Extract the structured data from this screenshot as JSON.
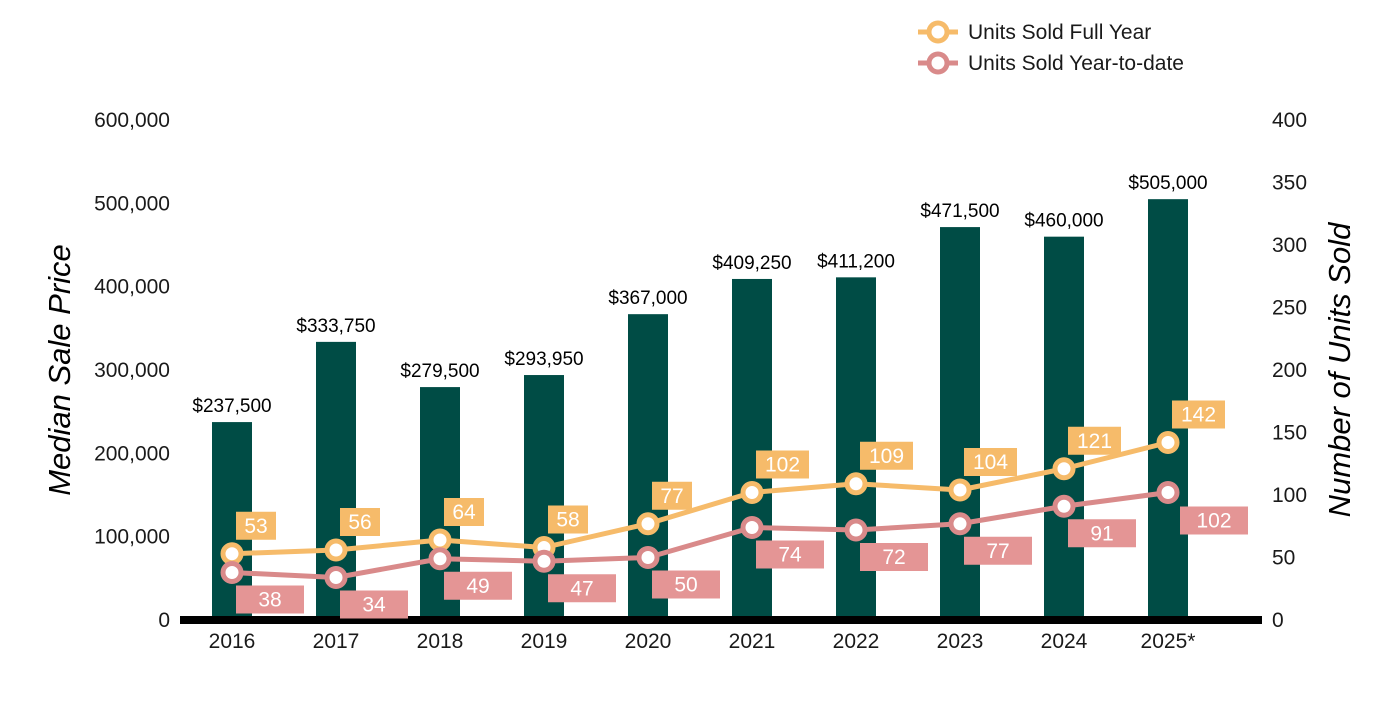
{
  "chart_data": {
    "type": "bar",
    "categories": [
      "2016",
      "2017",
      "2018",
      "2019",
      "2020",
      "2021",
      "2022",
      "2023",
      "2024",
      "2025*"
    ],
    "bar_series": {
      "values": [
        237500,
        333750,
        279500,
        293950,
        367000,
        409250,
        411200,
        471500,
        460000,
        505000
      ],
      "labels": [
        "$237,500",
        "$333,750",
        "$279,500",
        "$293,950",
        "$367,000",
        "$409,250",
        "$411,200",
        "$471,500",
        "$460,000",
        "$505,000"
      ],
      "color": "#004c45"
    },
    "line_series": [
      {
        "name": "Units Sold Full Year",
        "values": [
          53,
          56,
          64,
          58,
          77,
          102,
          109,
          104,
          121,
          142
        ],
        "color": "#f6bb6a",
        "label_position": "above"
      },
      {
        "name": "Units Sold Year-to-date",
        "values": [
          38,
          34,
          49,
          47,
          50,
          74,
          72,
          77,
          91,
          102
        ],
        "color": "#d98a8a",
        "label_color": "#e49595",
        "label_position": "below"
      }
    ],
    "ylabel": "Median Sale Price",
    "y2label": "Number of Units Sold",
    "ylim": [
      0,
      600000
    ],
    "y2lim": [
      0,
      400
    ],
    "yticks": [
      "0",
      "100,000",
      "200,000",
      "300,000",
      "400,000",
      "500,000",
      "600,000"
    ],
    "y2ticks": [
      "0",
      "50",
      "100",
      "150",
      "200",
      "250",
      "300",
      "350",
      "400"
    ],
    "grid": false,
    "legend_position": "top-right"
  }
}
